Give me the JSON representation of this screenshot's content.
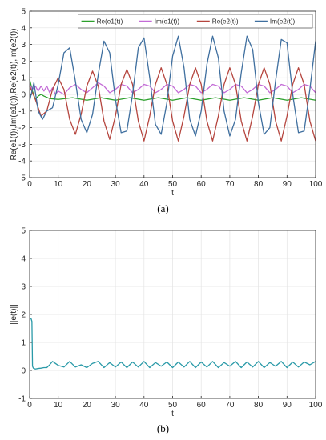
{
  "chart_data": [
    {
      "type": "line",
      "panel_label": "(a)",
      "title": "",
      "xlabel": "t",
      "ylabel": "Re(e1(t)),Im(e1(t)),Re(e2(t)),Im(e2(t))",
      "xlim": [
        0,
        100
      ],
      "ylim": [
        -5,
        5
      ],
      "xticks": [
        0,
        10,
        20,
        30,
        40,
        50,
        60,
        70,
        80,
        90,
        100
      ],
      "yticks": [
        -5,
        -4,
        -3,
        -2,
        -1,
        0,
        1,
        2,
        3,
        4,
        5
      ],
      "grid": true,
      "legend_position": "top-right",
      "series": [
        {
          "name": "Re(e1(t))",
          "color": "#2ca02c",
          "x": [
            0,
            1,
            2,
            3,
            4,
            5,
            7,
            10,
            15,
            20,
            25,
            30,
            35,
            40,
            45,
            50,
            55,
            60,
            65,
            70,
            75,
            80,
            85,
            90,
            95,
            100
          ],
          "y": [
            0.9,
            0.2,
            -0.3,
            -0.1,
            0.0,
            -0.1,
            -0.25,
            -0.3,
            -0.2,
            -0.35,
            -0.2,
            -0.35,
            -0.2,
            -0.35,
            -0.2,
            -0.35,
            -0.2,
            -0.35,
            -0.2,
            -0.35,
            -0.2,
            -0.35,
            -0.2,
            -0.35,
            -0.2,
            -0.35
          ]
        },
        {
          "name": "Im(e1(t))",
          "color": "#c36bd6",
          "x": [
            0,
            1,
            2,
            3,
            4,
            5,
            6,
            7,
            8,
            9,
            10,
            12,
            14,
            16,
            18,
            20,
            22,
            24,
            26,
            28,
            30,
            32,
            34,
            36,
            38,
            40,
            42,
            44,
            46,
            48,
            50,
            52,
            54,
            56,
            58,
            60,
            62,
            64,
            66,
            68,
            70,
            72,
            74,
            76,
            78,
            80,
            82,
            84,
            86,
            88,
            90,
            92,
            94,
            96,
            98,
            100
          ],
          "y": [
            0.6,
            0.3,
            0.5,
            0.2,
            0.5,
            0.2,
            0.5,
            0.1,
            0.4,
            0.0,
            0.2,
            0.0,
            0.4,
            0.6,
            0.3,
            0.1,
            0.4,
            0.7,
            0.5,
            0.1,
            0.3,
            0.6,
            0.5,
            0.1,
            0.3,
            0.6,
            0.5,
            0.1,
            0.3,
            0.6,
            0.5,
            0.1,
            0.3,
            0.6,
            0.5,
            0.1,
            0.3,
            0.6,
            0.5,
            0.1,
            0.3,
            0.6,
            0.5,
            0.1,
            0.3,
            0.6,
            0.5,
            0.1,
            0.3,
            0.6,
            0.5,
            0.1,
            0.3,
            0.6,
            0.5,
            0.1
          ]
        },
        {
          "name": "Re(e2(t))",
          "color": "#b5453e",
          "x": [
            0,
            2,
            4,
            6,
            8,
            10,
            12,
            14,
            16,
            18,
            20,
            22,
            24,
            26,
            28,
            30,
            32,
            34,
            36,
            38,
            40,
            42,
            44,
            46,
            48,
            50,
            52,
            54,
            56,
            58,
            60,
            62,
            64,
            66,
            68,
            70,
            72,
            74,
            76,
            78,
            80,
            82,
            84,
            86,
            88,
            90,
            92,
            94,
            96,
            98,
            100
          ],
          "y": [
            0.5,
            -0.3,
            -1.3,
            -1.0,
            0.3,
            1.0,
            0.3,
            -1.5,
            -2.4,
            -1.2,
            0.5,
            1.4,
            0.5,
            -1.6,
            -2.7,
            -1.3,
            0.6,
            1.5,
            0.6,
            -1.6,
            -2.8,
            -1.3,
            0.6,
            1.6,
            0.6,
            -1.6,
            -2.8,
            -1.3,
            0.6,
            1.6,
            0.6,
            -1.6,
            -2.8,
            -1.3,
            0.6,
            1.6,
            0.6,
            -1.6,
            -2.8,
            -1.3,
            0.6,
            1.6,
            0.6,
            -1.6,
            -2.8,
            -1.3,
            0.6,
            1.6,
            0.6,
            -1.6,
            -2.8
          ]
        },
        {
          "name": "Im(e2(t))",
          "color": "#3f6f9f",
          "x": [
            0,
            1.5,
            3,
            4.5,
            6,
            8,
            10,
            12,
            14,
            16,
            18,
            20,
            22,
            24,
            26,
            28,
            30,
            32,
            34,
            36,
            38,
            40,
            42,
            44,
            46,
            48,
            50,
            52,
            54,
            56,
            58,
            60,
            62,
            64,
            66,
            68,
            70,
            72,
            74,
            76,
            78,
            80,
            82,
            84,
            86,
            88,
            90,
            92,
            94,
            96,
            98,
            100
          ],
          "y": [
            -0.4,
            0.7,
            -1.0,
            -1.5,
            -1.0,
            -0.8,
            0.6,
            2.5,
            2.8,
            0.8,
            -1.5,
            -2.3,
            -1.2,
            1.2,
            3.2,
            2.5,
            -0.3,
            -2.3,
            -2.2,
            0.0,
            2.8,
            3.4,
            1.0,
            -1.8,
            -2.4,
            -0.5,
            2.3,
            3.5,
            1.6,
            -1.5,
            -2.5,
            -1.0,
            1.8,
            3.5,
            2.2,
            -1.0,
            -2.5,
            -1.5,
            1.3,
            3.5,
            2.7,
            -0.5,
            -2.4,
            -2.0,
            0.8,
            3.3,
            3.1,
            0.0,
            -2.3,
            -2.2,
            0.3,
            3.2
          ]
        }
      ]
    },
    {
      "type": "line",
      "panel_label": "(b)",
      "title": "",
      "xlabel": "t",
      "ylabel": "||e(t)||",
      "xlim": [
        0,
        100
      ],
      "ylim": [
        -1,
        5
      ],
      "xticks": [
        0,
        10,
        20,
        30,
        40,
        50,
        60,
        70,
        80,
        90,
        100
      ],
      "yticks": [
        -1,
        0,
        1,
        2,
        3,
        4,
        5
      ],
      "grid": true,
      "series": [
        {
          "color": "#2a9aa8",
          "x": [
            0,
            0.5,
            0.8,
            1,
            1.3,
            2,
            3,
            4,
            5,
            6,
            7,
            8,
            10,
            12,
            14,
            16,
            18,
            20,
            22,
            24,
            26,
            28,
            30,
            32,
            34,
            36,
            38,
            40,
            42,
            44,
            46,
            48,
            50,
            52,
            54,
            56,
            58,
            60,
            62,
            64,
            66,
            68,
            70,
            72,
            74,
            76,
            78,
            80,
            82,
            84,
            86,
            88,
            90,
            92,
            94,
            96,
            98,
            100
          ],
          "y": [
            1.85,
            1.85,
            1.75,
            0.15,
            0.08,
            0.05,
            0.07,
            0.08,
            0.1,
            0.1,
            0.2,
            0.32,
            0.18,
            0.12,
            0.32,
            0.12,
            0.2,
            0.1,
            0.25,
            0.32,
            0.1,
            0.28,
            0.12,
            0.3,
            0.1,
            0.3,
            0.12,
            0.32,
            0.1,
            0.28,
            0.15,
            0.3,
            0.1,
            0.3,
            0.12,
            0.32,
            0.1,
            0.3,
            0.12,
            0.32,
            0.1,
            0.28,
            0.15,
            0.32,
            0.1,
            0.3,
            0.12,
            0.32,
            0.1,
            0.28,
            0.15,
            0.32,
            0.1,
            0.3,
            0.12,
            0.3,
            0.2,
            0.32
          ]
        }
      ]
    }
  ]
}
